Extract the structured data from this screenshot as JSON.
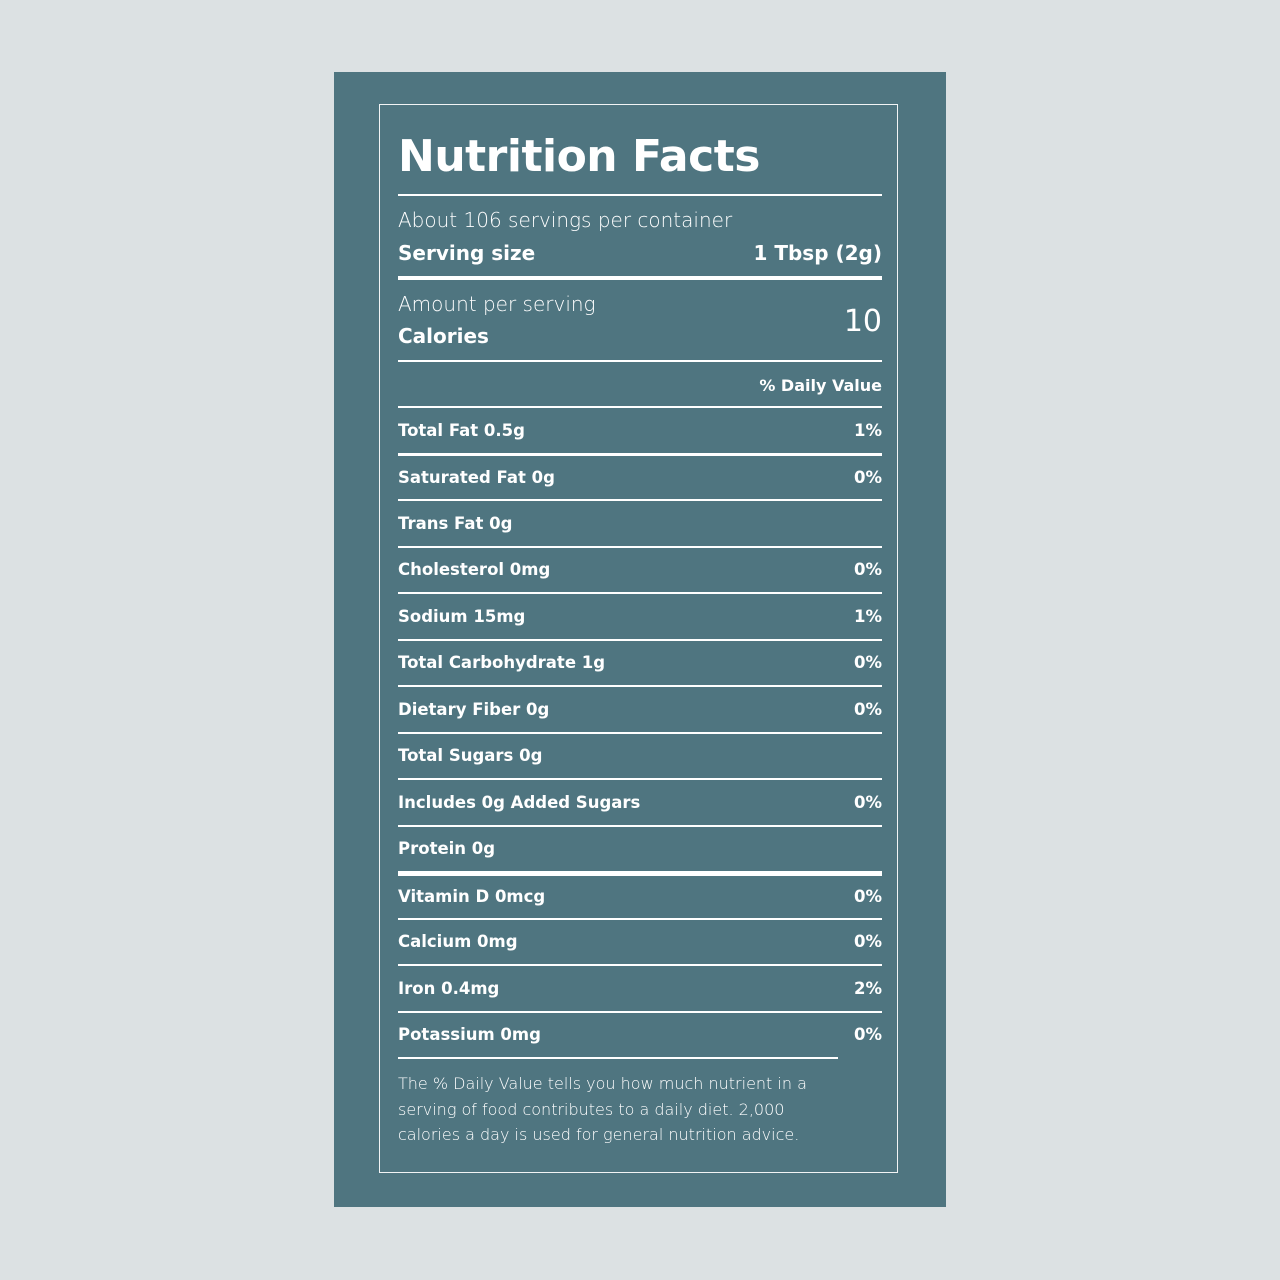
{
  "label": {
    "title": "Nutrition Facts",
    "servings_per_container": "About 106 servings per container",
    "serving_size_label": "Serving size",
    "serving_size_value": "1 Tbsp (2g)",
    "amount_per_serving": "Amount per serving",
    "calories_label": "Calories",
    "calories_value": "10",
    "daily_value_header": "% Daily Value",
    "nutrients": [
      {
        "label": "Total Fat 0.5g",
        "dv": "1%"
      },
      {
        "label": "Saturated Fat 0g",
        "dv": "0%"
      },
      {
        "label": "Trans Fat 0g",
        "dv": ""
      },
      {
        "label": "Cholesterol 0mg",
        "dv": "0%"
      },
      {
        "label": "Sodium 15mg",
        "dv": "1%"
      },
      {
        "label": "Total Carbohydrate 1g",
        "dv": "0%"
      },
      {
        "label": "Dietary Fiber 0g",
        "dv": "0%"
      },
      {
        "label": "Total Sugars 0g",
        "dv": ""
      },
      {
        "label": "Includes 0g Added Sugars",
        "dv": "0%"
      },
      {
        "label": "Protein 0g",
        "dv": ""
      },
      {
        "label": "Vitamin D 0mcg",
        "dv": "0%"
      },
      {
        "label": "Calcium 0mg",
        "dv": "0%"
      },
      {
        "label": "Iron 0.4mg",
        "dv": "2%"
      },
      {
        "label": "Potassium 0mg",
        "dv": "0%"
      }
    ],
    "footnote": "The % Daily Value tells you how much nutrient in a serving of food contributes to a daily diet. 2,000 calories a day is used for general nutrition advice."
  },
  "colors": {
    "background": "#dce1e3",
    "panel": "#4f7580",
    "text": "#ffffff"
  }
}
